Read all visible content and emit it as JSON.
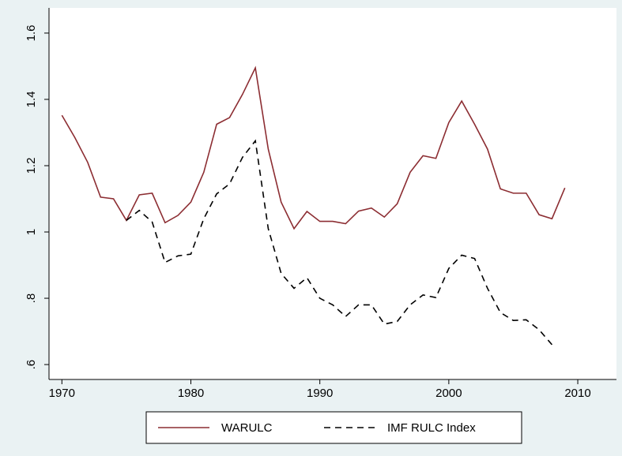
{
  "chart_data": {
    "type": "line",
    "x": [
      1970,
      1971,
      1972,
      1973,
      1974,
      1975,
      1976,
      1977,
      1978,
      1979,
      1980,
      1981,
      1982,
      1983,
      1984,
      1985,
      1986,
      1987,
      1988,
      1989,
      1990,
      1991,
      1992,
      1993,
      1994,
      1995,
      1996,
      1997,
      1998,
      1999,
      2000,
      2001,
      2002,
      2003,
      2004,
      2005,
      2006,
      2007,
      2008,
      2009
    ],
    "series": [
      {
        "name": "WARULC",
        "color": "#8c2d32",
        "dash": false,
        "values": [
          1.352,
          1.285,
          1.21,
          1.105,
          1.1,
          1.035,
          1.112,
          1.117,
          1.028,
          1.05,
          1.09,
          1.18,
          1.325,
          1.345,
          1.415,
          1.495,
          1.25,
          1.09,
          1.01,
          1.062,
          1.032,
          1.032,
          1.025,
          1.063,
          1.072,
          1.045,
          1.085,
          1.18,
          1.23,
          1.222,
          1.33,
          1.395,
          1.325,
          1.25,
          1.13,
          1.117,
          1.117,
          1.052,
          1.04,
          1.133
        ]
      },
      {
        "name": "IMF RULC Index",
        "color": "#000000",
        "dash": true,
        "values": [
          null,
          null,
          null,
          null,
          null,
          1.035,
          1.065,
          1.03,
          0.908,
          0.928,
          0.933,
          1.04,
          1.115,
          1.145,
          1.225,
          1.275,
          1.01,
          0.875,
          0.83,
          0.862,
          0.8,
          0.78,
          0.745,
          0.78,
          0.78,
          0.722,
          0.73,
          0.78,
          0.81,
          0.802,
          0.89,
          0.93,
          0.92,
          0.83,
          0.757,
          0.733,
          0.735,
          0.705,
          0.66,
          null
        ]
      }
    ],
    "xlim": [
      1969,
      2013
    ],
    "xticks": [
      1970,
      1980,
      1990,
      2000,
      2010
    ],
    "ylim": [
      0.555,
      1.676
    ],
    "yticks": [
      {
        "value": 0.6,
        "label": ".6"
      },
      {
        "value": 0.8,
        "label": ".8"
      },
      1,
      1.2,
      1.4,
      1.6
    ],
    "grid": false,
    "legend": "bottom"
  }
}
